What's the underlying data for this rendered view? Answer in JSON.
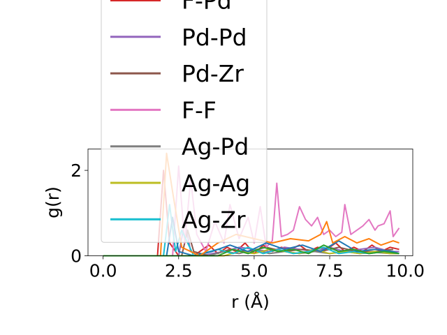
{
  "chart_data": {
    "type": "line",
    "title": "",
    "xlabel": "r (Å)",
    "ylabel": "g(r)",
    "xlim": [
      -0.5,
      10.25
    ],
    "ylim": [
      0,
      2.5
    ],
    "x_ticks": [
      0.0,
      2.5,
      5.0,
      7.5,
      10.0
    ],
    "x_tick_labels": [
      "0.0",
      "2.5",
      "5.0",
      "7.5",
      "10.0"
    ],
    "y_ticks": [
      0,
      2
    ],
    "y_tick_labels": [
      "0",
      "2"
    ],
    "grid": false,
    "legend_placement": "upper-left, overflowing above plot area",
    "series": [
      {
        "name": "F-Pd",
        "color": "#d62728",
        "x": [
          0,
          1.8,
          2.0,
          2.2,
          2.5,
          3.0,
          3.5,
          3.8,
          4.1,
          4.4,
          4.7,
          5.0,
          5.3,
          5.6,
          5.9,
          6.2,
          6.5,
          6.8,
          7.1,
          7.4,
          7.7,
          8.0,
          8.3,
          8.6,
          8.9,
          9.2,
          9.5,
          9.8
        ],
        "y": [
          0,
          0,
          2.0,
          0.3,
          0,
          0,
          0.25,
          0.05,
          0.2,
          0.1,
          0.3,
          0.05,
          0.25,
          0.1,
          0.2,
          0.15,
          0.25,
          0.1,
          0.2,
          0.15,
          0.3,
          0.1,
          0.2,
          0.1,
          0.25,
          0.1,
          0.2,
          0.15
        ]
      },
      {
        "name": "Pd-Pd",
        "color": "#9467bd",
        "x": [
          0,
          2.5,
          2.7,
          2.9,
          3.2,
          4.0,
          4.5,
          5.0,
          5.5,
          6.0,
          6.5,
          7.0,
          7.5,
          8.0,
          8.5,
          9.0,
          9.5,
          9.8
        ],
        "y": [
          0,
          0,
          0.8,
          0.1,
          0,
          0.1,
          0.2,
          0.15,
          0.1,
          0.2,
          0.15,
          0.1,
          0.2,
          0.1,
          0.15,
          0.2,
          0.1,
          0.1
        ]
      },
      {
        "name": "Pd-Zr",
        "color": "#8c564b",
        "x": [
          0,
          2.6,
          2.8,
          3.0,
          3.5,
          4.2,
          4.8,
          5.4,
          6.0,
          6.6,
          7.2,
          7.8,
          8.4,
          9.0,
          9.6
        ],
        "y": [
          0,
          0,
          0.6,
          0.1,
          0,
          0.15,
          0.1,
          0.2,
          0.1,
          0.15,
          0.1,
          0.2,
          0.1,
          0.1,
          0.15
        ]
      },
      {
        "name": "F-F",
        "color": "#e377c2",
        "x": [
          0,
          2.3,
          2.5,
          2.7,
          2.9,
          3.1,
          3.4,
          3.7,
          4.0,
          4.2,
          4.5,
          4.8,
          5.0,
          5.2,
          5.4,
          5.6,
          5.75,
          5.9,
          6.1,
          6.3,
          6.5,
          6.7,
          6.9,
          7.1,
          7.3,
          7.5,
          7.7,
          7.9,
          8.0,
          8.2,
          8.4,
          8.6,
          8.8,
          9.0,
          9.1,
          9.3,
          9.5,
          9.6,
          9.8
        ],
        "y": [
          0,
          0,
          2.1,
          0.3,
          1.8,
          0.5,
          0.1,
          0.8,
          0.3,
          1.2,
          0.4,
          0.9,
          0.3,
          1.15,
          0.2,
          0.35,
          1.7,
          0.45,
          0.5,
          0.6,
          1.15,
          0.85,
          0.7,
          0.9,
          0.5,
          0.6,
          0.45,
          0.55,
          1.2,
          0.5,
          0.6,
          0.7,
          0.85,
          0.6,
          0.7,
          0.75,
          1.05,
          0.45,
          0.65
        ]
      },
      {
        "name": "Ag-Pd",
        "color": "#7f7f7f",
        "x": [
          0,
          3.5,
          4.0,
          4.5,
          5.0,
          5.5,
          6.0,
          6.5,
          7.0,
          7.5,
          8.0,
          8.5,
          9.0,
          9.5,
          9.8
        ],
        "y": [
          0,
          0,
          0.1,
          0.05,
          0.15,
          0.05,
          0.1,
          0.05,
          0.1,
          0.05,
          0.1,
          0.05,
          0.08,
          0.05,
          0.05
        ]
      },
      {
        "name": "Ag-Ag",
        "color": "#bcbd22",
        "x": [
          0,
          4.0,
          4.5,
          5.0,
          5.5,
          6.0,
          6.5,
          7.0,
          7.5,
          8.0,
          8.5,
          9.0,
          9.5,
          9.8
        ],
        "y": [
          0,
          0,
          0.1,
          0.05,
          0.15,
          0.1,
          0.05,
          0.15,
          0.05,
          0.1,
          0.05,
          0.1,
          0.05,
          0.05
        ]
      },
      {
        "name": "Ag-Zr",
        "color": "#17becf",
        "x": [
          0,
          2.0,
          2.2,
          2.4,
          2.6,
          3.0,
          3.8,
          4.3,
          4.8,
          5.3,
          5.8,
          6.3,
          6.8,
          7.3,
          7.8,
          8.3,
          8.8,
          9.3,
          9.8
        ],
        "y": [
          0,
          0,
          1.2,
          0.1,
          0.6,
          0,
          0.15,
          0.05,
          0.2,
          0.05,
          0.15,
          0.05,
          0.1,
          0.2,
          0.05,
          0.1,
          0.05,
          0.1,
          0.05
        ]
      },
      {
        "name": "",
        "color": "#1f77b4",
        "x": [
          0,
          2.1,
          2.3,
          2.5,
          3.0,
          3.6,
          4.2,
          4.8,
          5.4,
          6.0,
          6.6,
          7.2,
          7.8,
          8.4,
          9.0,
          9.6,
          9.8
        ],
        "y": [
          0,
          0,
          0.9,
          0.1,
          0,
          0.1,
          0.25,
          0.1,
          0.3,
          0.15,
          0.25,
          0.1,
          0.35,
          0.1,
          0.15,
          0.1,
          0.05
        ]
      },
      {
        "name": "",
        "color": "#ff7f0e",
        "x": [
          0,
          1.9,
          2.1,
          2.3,
          2.6,
          3.2,
          3.8,
          4.4,
          5.0,
          5.6,
          6.2,
          6.8,
          7.2,
          7.4,
          7.6,
          8.0,
          8.4,
          8.8,
          9.2,
          9.6,
          9.8
        ],
        "y": [
          0,
          0,
          2.4,
          1.5,
          0.2,
          0,
          0.3,
          0.5,
          0.4,
          0.3,
          0.4,
          0.35,
          0.5,
          0.8,
          0.3,
          0.45,
          0.3,
          0.4,
          0.25,
          0.35,
          0.3
        ]
      },
      {
        "name": "",
        "color": "#2ca02c",
        "x": [
          0,
          3.8,
          4.3,
          4.8,
          5.3,
          5.8,
          6.3,
          6.8,
          7.3,
          7.8,
          8.3,
          8.8,
          9.3,
          9.8
        ],
        "y": [
          0,
          0,
          0.15,
          0.05,
          0.2,
          0.1,
          0.15,
          0.05,
          0.25,
          0.1,
          0.15,
          0.05,
          0.1,
          0.05
        ]
      }
    ]
  }
}
